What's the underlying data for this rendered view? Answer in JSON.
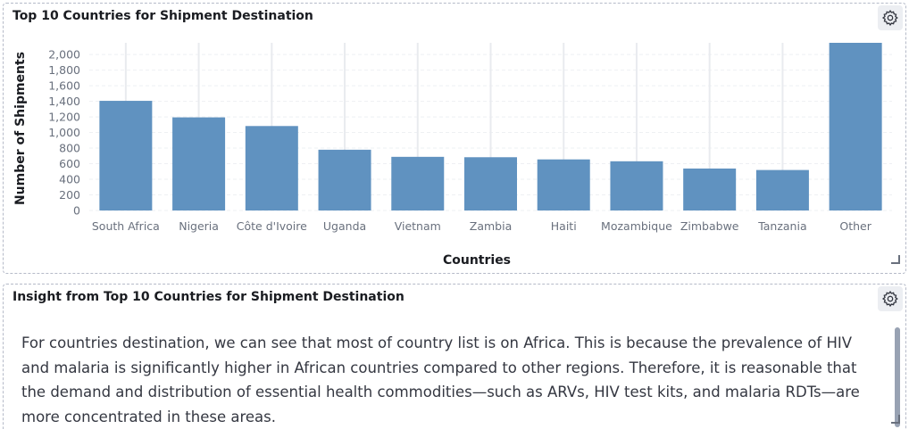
{
  "chart_panel": {
    "title": "Top 10 Countries for Shipment Destination",
    "gear_icon": "gear-icon",
    "resize_icon": "resize-handle-icon"
  },
  "insight_panel": {
    "title": "Insight from Top 10 Countries for Shipment Destination",
    "gear_icon": "gear-icon",
    "resize_icon": "resize-handle-icon",
    "text": "For countries destination, we can see that most of country list is on Africa. This is because the prevalence of HIV and malaria is significantly higher in African countries compared to other regions. Therefore, it is reasonable that the demand and distribution of essential health commodities—such as ARVs, HIV test kits, and malaria RDTs—are more concentrated in these areas."
  },
  "colors": {
    "bar": "#6092c0",
    "grid": "#eef0f3",
    "axis_text": "#69707d",
    "tick_line": "#e9ebef"
  },
  "chart_data": {
    "type": "bar",
    "title": "",
    "xlabel": "Countries",
    "ylabel": "Number of Shipments",
    "categories": [
      "South Africa",
      "Nigeria",
      "Côte d'Ivoire",
      "Uganda",
      "Vietnam",
      "Zambia",
      "Haiti",
      "Mozambique",
      "Zimbabwe",
      "Tanzania",
      "Other"
    ],
    "values": [
      1406,
      1194,
      1083,
      779,
      688,
      683,
      655,
      631,
      538,
      519,
      2150
    ],
    "yticks": [
      "0",
      "200",
      "400",
      "600",
      "800",
      "1,000",
      "1,200",
      "1,400",
      "1,600",
      "1,800",
      "2,000"
    ],
    "ylim": [
      0,
      2150
    ],
    "grid": true,
    "legend": "none"
  }
}
